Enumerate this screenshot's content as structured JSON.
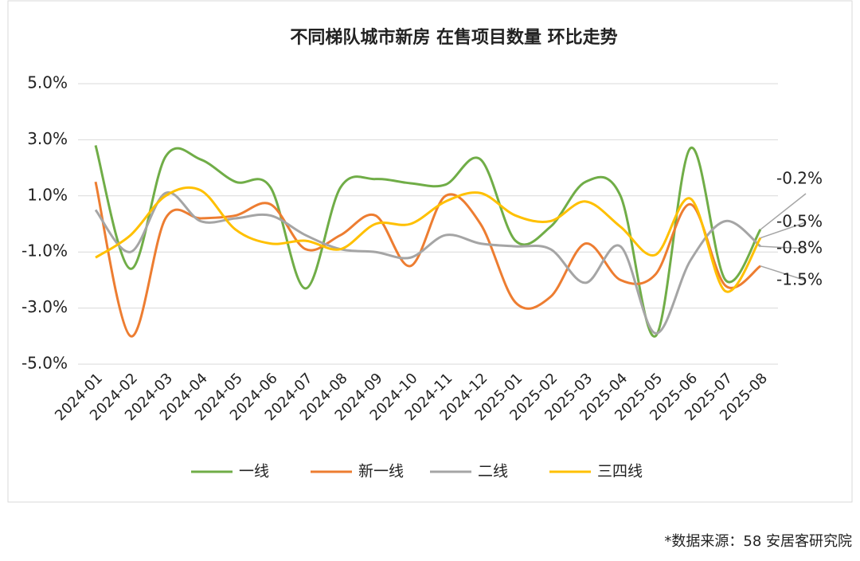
{
  "chart_data": {
    "type": "line",
    "title": "不同梯队城市新房 在售项目数量 环比走势",
    "source": "*数据来源：58 安居客研究院",
    "categories": [
      "2024-01",
      "2024-02",
      "2024-03",
      "2024-04",
      "2024-05",
      "2024-06",
      "2024-07",
      "2024-08",
      "2024-09",
      "2024-10",
      "2024-11",
      "2024-12",
      "2025-01",
      "2025-02",
      "2025-03",
      "2025-04",
      "2025-05",
      "2025-06",
      "2025-07",
      "2025-08"
    ],
    "series": [
      {
        "name": "一线",
        "color": "#70ad47",
        "values": [
          2.8,
          -1.6,
          2.4,
          2.3,
          1.5,
          1.3,
          -2.3,
          1.3,
          1.6,
          1.45,
          1.4,
          2.3,
          -0.6,
          -0.1,
          1.5,
          1.0,
          -4.0,
          2.7,
          -2.0,
          -0.2
        ],
        "value_labels": [
          null,
          null,
          null,
          null,
          null,
          null,
          null,
          null,
          null,
          null,
          null,
          null,
          null,
          null,
          null,
          null,
          null,
          null,
          null,
          "-0.2%"
        ]
      },
      {
        "name": "新一线",
        "color": "#ed7d31",
        "values": [
          1.5,
          -4.0,
          0.2,
          0.2,
          0.3,
          0.7,
          -0.9,
          -0.4,
          0.3,
          -1.5,
          1.0,
          0.0,
          -2.8,
          -2.6,
          -0.7,
          -2.0,
          -1.8,
          0.7,
          -2.2,
          -1.5
        ],
        "value_labels": [
          null,
          null,
          null,
          null,
          null,
          null,
          null,
          null,
          null,
          null,
          null,
          null,
          null,
          null,
          null,
          null,
          null,
          null,
          null,
          "-1.5%"
        ]
      },
      {
        "name": "二线",
        "color": "#a5a5a5",
        "values": [
          0.5,
          -1.0,
          1.1,
          0.1,
          0.2,
          0.3,
          -0.4,
          -0.9,
          -1.0,
          -1.2,
          -0.4,
          -0.7,
          -0.8,
          -0.9,
          -2.1,
          -0.8,
          -3.9,
          -1.3,
          0.1,
          -0.8
        ],
        "value_labels": [
          null,
          null,
          null,
          null,
          null,
          null,
          null,
          null,
          null,
          null,
          null,
          null,
          null,
          null,
          null,
          null,
          null,
          null,
          null,
          "-0.8%"
        ]
      },
      {
        "name": "三四线",
        "color": "#ffc000",
        "values": [
          -1.2,
          -0.4,
          1.0,
          1.2,
          -0.2,
          -0.7,
          -0.6,
          -0.9,
          0.0,
          0.0,
          0.8,
          1.1,
          0.3,
          0.1,
          0.8,
          -0.1,
          -1.1,
          0.9,
          -2.4,
          -0.5
        ],
        "value_labels": [
          null,
          null,
          null,
          null,
          null,
          null,
          null,
          null,
          null,
          null,
          null,
          null,
          null,
          null,
          null,
          null,
          null,
          null,
          null,
          "-0.5%"
        ]
      }
    ],
    "ylim": [
      -5,
      5
    ],
    "yticks": [
      {
        "value": 5,
        "label": "5.0%"
      },
      {
        "value": 3,
        "label": "3.0%"
      },
      {
        "value": 1,
        "label": "1.0%"
      },
      {
        "value": -1,
        "label": "-1.0%"
      },
      {
        "value": -3,
        "label": "-3.0%"
      },
      {
        "value": -5,
        "label": "-5.0%"
      }
    ],
    "grid": true,
    "legend": "bottom"
  }
}
